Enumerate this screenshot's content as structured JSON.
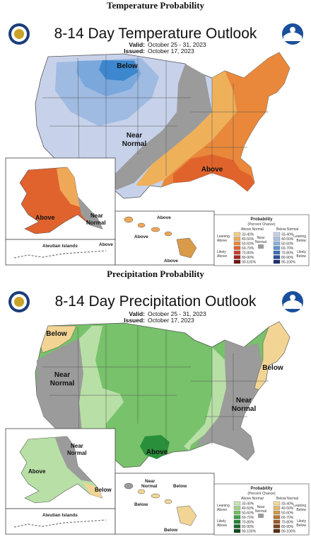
{
  "temp": {
    "section_title": "Temperature Probability",
    "map_title": "8-14 Day Temperature Outlook",
    "valid_label": "Valid:",
    "valid_value": "October 25 - 31, 2023",
    "issued_label": "Issued:",
    "issued_value": "October 17, 2023",
    "labels": {
      "below": "Below",
      "near": "Near",
      "normal": "Normal",
      "above": "Above",
      "ak_above": "Above",
      "ak_near": "Near",
      "ak_normal": "Normal",
      "aleutian": "Aleutian Islands",
      "aleutian_above": "Above",
      "hi_above1": "Above",
      "hi_above2": "Above",
      "hi_above3": "Above"
    },
    "legend": {
      "title": "Probability",
      "subtitle": "(Percent Chance)",
      "left_head": "Above Normal",
      "right_head": "Below Normal",
      "left_lean": "Leaning Above",
      "left_likely": "Likely Above",
      "right_lean": "Leaning Below",
      "right_likely": "Likely Below",
      "near_label": "Near Normal",
      "bins": [
        "33-40%",
        "40-50%",
        "50-60%",
        "60-70%",
        "70-80%",
        "80-90%",
        "90-100%"
      ],
      "left_colors": [
        "#f5cf8e",
        "#efab5a",
        "#e98a3a",
        "#e1642d",
        "#c9402a",
        "#a02820",
        "#6e1414"
      ],
      "right_colors": [
        "#c9d2ea",
        "#aabfe3",
        "#8db1dc",
        "#5b96d3",
        "#3c6fb8",
        "#2a4f9b",
        "#1b2f6e"
      ]
    }
  },
  "precip": {
    "section_title": "Precipitation Probability",
    "map_title": "8-14 Day Precipitation Outlook",
    "valid_label": "Valid:",
    "valid_value": "October 25 - 31, 2023",
    "issued_label": "Issued:",
    "issued_value": "October 17, 2023",
    "labels": {
      "below_nw": "Below",
      "near_w": "Near",
      "normal_w": "Normal",
      "above": "Above",
      "below_ne": "Below",
      "near_e": "Near",
      "normal_e": "Normal",
      "ak_near": "Near",
      "ak_normal": "Normal",
      "ak_above": "Above",
      "ak_below": "Below",
      "aleutian": "Aleutian Islands",
      "hi_near": "Near",
      "hi_normal": "Normal",
      "hi_below1": "Below",
      "hi_below2": "Below",
      "hi_below3": "Below"
    },
    "legend": {
      "title": "Probability",
      "subtitle": "(Percent Chance)",
      "left_head": "Above Normal",
      "right_head": "Below Normal",
      "left_lean": "Leaning Above",
      "left_likely": "Likely Above",
      "right_lean": "Leaning Below",
      "right_likely": "Likely Below",
      "near_label": "Near Normal",
      "bins": [
        "33-40%",
        "40-50%",
        "50-60%",
        "60-70%",
        "70-80%",
        "80-90%",
        "90-100%"
      ],
      "left_colors": [
        "#c6e7b5",
        "#9ed48a",
        "#6fbf5e",
        "#3fa046",
        "#2a8337",
        "#1b6a2b",
        "#0c4a1c"
      ],
      "right_colors": [
        "#f3d99b",
        "#e6b86a",
        "#d39849",
        "#b87634",
        "#9a5a26",
        "#7a421b",
        "#5a2d10"
      ]
    },
    "colors": {
      "lean_above": "#b8dfa6",
      "above": "#77c26a",
      "likely_above": "#2a8f3b",
      "below": "#f2d595",
      "near": "#9b9b9b"
    }
  }
}
